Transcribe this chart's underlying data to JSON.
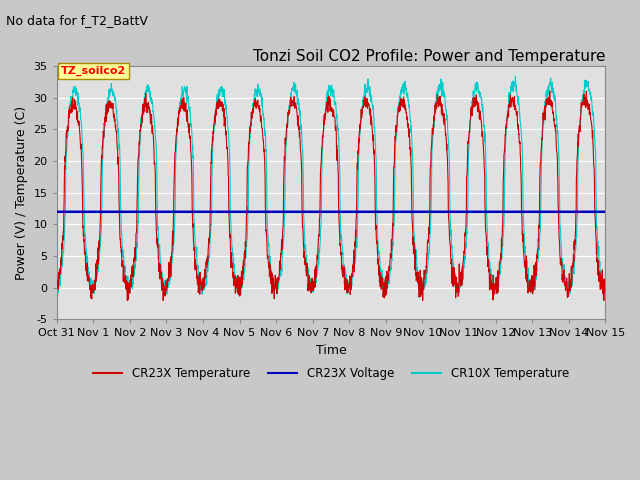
{
  "title": "Tonzi Soil CO2 Profile: Power and Temperature",
  "note": "No data for f_T2_BattV",
  "xlabel": "Time",
  "ylabel": "Power (V) / Temperature (C)",
  "ylim": [
    -5,
    35
  ],
  "xlim": [
    0,
    15
  ],
  "annotation_text": "TZ_soilco2",
  "voltage_value": 12.0,
  "xtick_labels": [
    "Oct 31",
    "Nov 1",
    "Nov 2",
    "Nov 3",
    "Nov 4",
    "Nov 5",
    "Nov 6",
    "Nov 7",
    "Nov 8",
    "Nov 9",
    "Nov 10",
    "Nov 11",
    "Nov 12",
    "Nov 13",
    "Nov 14",
    "Nov 15"
  ],
  "cr23x_color": "#cc0000",
  "cr10x_color": "#00cccc",
  "voltage_color": "#0000bb",
  "fig_bg_color": "#c8c8c8",
  "plot_bg_color": "#e0e0e0",
  "legend_items": [
    "CR23X Temperature",
    "CR23X Voltage",
    "CR10X Temperature"
  ],
  "title_fontsize": 11,
  "note_fontsize": 9,
  "axis_fontsize": 9,
  "tick_fontsize": 8
}
